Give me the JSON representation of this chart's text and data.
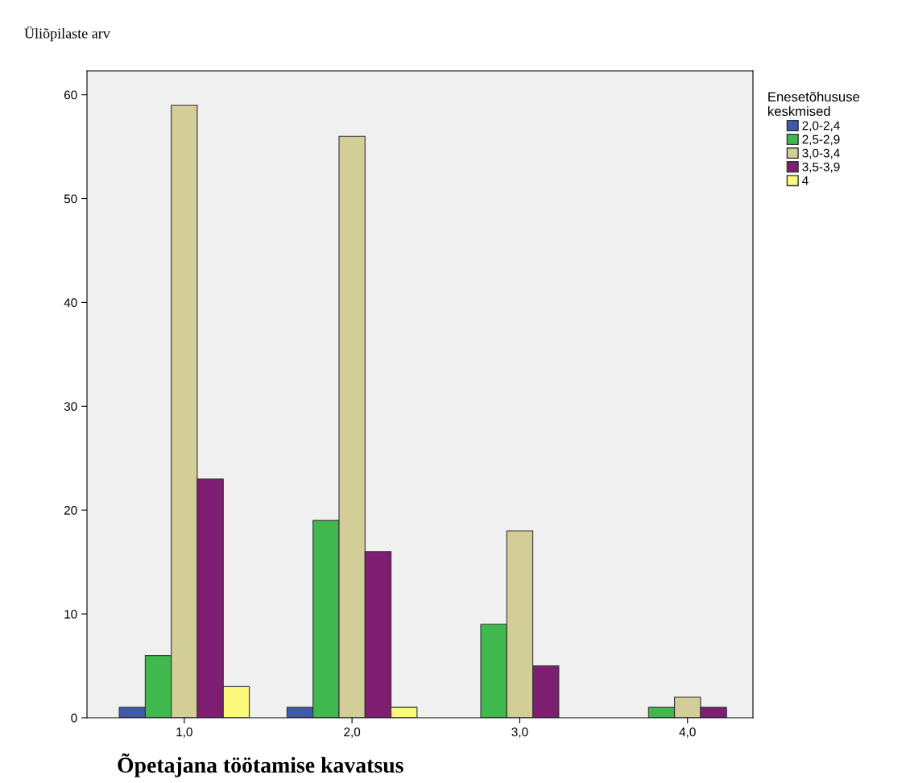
{
  "chart_data": {
    "type": "bar",
    "xlabel": "Õpetajana töötamise kavatsus",
    "ylabel": "Üliõpilaste arv",
    "legend_title": "Enesetõhususe\nkeskmised",
    "categories": [
      "1,0",
      "2,0",
      "3,0",
      "4,0"
    ],
    "series": [
      {
        "name": "2,0-2,4",
        "color": "#3e5ba9",
        "values": [
          1,
          1,
          null,
          null
        ]
      },
      {
        "name": "2,5-2,9",
        "color": "#3fb94e",
        "values": [
          6,
          19,
          9,
          1
        ]
      },
      {
        "name": "3,0-3,4",
        "color": "#d3ce97",
        "values": [
          59,
          56,
          18,
          2
        ]
      },
      {
        "name": "3,5-3,9",
        "color": "#7e1e72",
        "values": [
          23,
          16,
          5,
          1
        ]
      },
      {
        "name": "4",
        "color": "#fbf97b",
        "values": [
          3,
          1,
          null,
          null
        ]
      }
    ],
    "ylim": [
      0,
      62.3
    ],
    "yticks": [
      0,
      10,
      20,
      30,
      40,
      50,
      60
    ],
    "grid": false,
    "legend": "top right"
  }
}
